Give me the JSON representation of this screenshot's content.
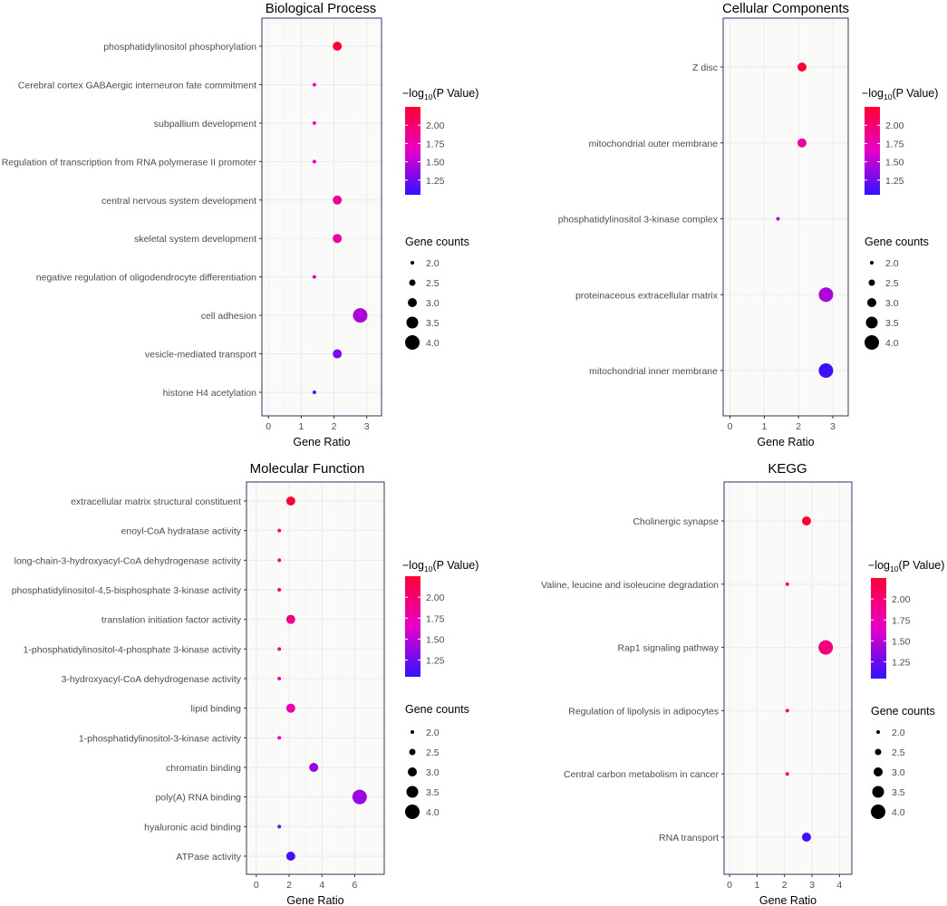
{
  "colors": {
    "high": "#ff0033",
    "mid": "#e600c8",
    "low": "#3311ff",
    "panel_bg": "#fafaf8",
    "grid": "#ebebeb",
    "frame": "#333366"
  },
  "legend": {
    "color_title_prefix": "−log",
    "color_title_sub": "10",
    "color_title_suffix": "(P Value)",
    "size_title": "Gene counts",
    "color_ticks": [
      "2.00",
      "1.75",
      "1.50",
      "1.25"
    ],
    "size_ticks": [
      "2.0",
      "2.5",
      "3.0",
      "3.5",
      "4.0"
    ]
  },
  "chart_data": [
    {
      "type": "scatter",
      "title": "Biological Process",
      "xlabel": "Gene Ratio",
      "ylabel": "",
      "xlim": [
        -0.2,
        3.45
      ],
      "xticks": [
        0,
        1,
        2,
        3
      ],
      "color_range": [
        1.05,
        2.25
      ],
      "categories": [
        "phosphatidylinositol phosphorylation",
        "Cerebral cortex GABAergic interneuron fate commitment",
        "subpallium development",
        "Regulation of transcription from RNA polymerase II promoter",
        "central nervous system development",
        "skeletal system development",
        "negative regulation of oligodendrocyte differentiation",
        "cell adhesion",
        "vesicle-mediated transport",
        "histone H4 acetylation"
      ],
      "x": [
        2.1,
        1.4,
        1.4,
        1.4,
        2.1,
        2.1,
        1.4,
        2.8,
        2.1,
        1.4
      ],
      "gene_counts": [
        3,
        2,
        2,
        2,
        3,
        3,
        2,
        4,
        3,
        2
      ],
      "neg_log10_p": [
        2.25,
        1.65,
        1.65,
        1.65,
        1.85,
        1.8,
        1.6,
        1.45,
        1.3,
        1.1
      ]
    },
    {
      "type": "scatter",
      "title": "Cellular Components",
      "xlabel": "Gene Ratio",
      "ylabel": "",
      "xlim": [
        -0.2,
        3.45
      ],
      "xticks": [
        0,
        1,
        2,
        3
      ],
      "color_range": [
        1.05,
        2.25
      ],
      "categories": [
        "Z disc",
        "mitochondrial outer membrane",
        "phosphatidylinositol 3-kinase complex",
        "proteinaceous extracellular matrix",
        "mitochondrial inner membrane"
      ],
      "x": [
        2.1,
        2.1,
        1.4,
        2.8,
        2.8
      ],
      "gene_counts": [
        3,
        3,
        2,
        4,
        4
      ],
      "neg_log10_p": [
        2.25,
        1.8,
        1.5,
        1.45,
        1.08
      ]
    },
    {
      "type": "scatter",
      "title": "Molecular Function",
      "xlabel": "Gene Ratio",
      "ylabel": "",
      "xlim": [
        -0.6,
        7.8
      ],
      "xticks": [
        0,
        2,
        4,
        6
      ],
      "color_range": [
        1.05,
        2.25
      ],
      "categories": [
        "extracellular matrix structural constituent",
        "enoyl-CoA hydratase activity",
        "long-chain-3-hydroxyacyl-CoA dehydrogenase activity",
        "phosphatidylinositol-4,5-bisphosphate 3-kinase activity",
        "translation initiation factor activity",
        "1-phosphatidylinositol-4-phosphate 3-kinase activity",
        "3-hydroxyacyl-CoA dehydrogenase activity",
        "lipid binding",
        "1-phosphatidylinositol-3-kinase activity",
        "chromatin binding",
        "poly(A) RNA binding",
        "hyaluronic acid binding",
        "ATPase activity"
      ],
      "x": [
        2.1,
        1.4,
        1.4,
        1.4,
        2.1,
        1.4,
        1.4,
        2.1,
        1.4,
        3.5,
        6.3,
        1.4,
        2.1
      ],
      "gene_counts": [
        3,
        2,
        2,
        2,
        3,
        2,
        2,
        3,
        2,
        3,
        4,
        2,
        3
      ],
      "neg_log10_p": [
        2.25,
        1.95,
        1.95,
        1.95,
        1.9,
        1.85,
        1.75,
        1.75,
        1.65,
        1.4,
        1.4,
        1.2,
        1.1
      ]
    },
    {
      "type": "scatter",
      "title": "KEGG",
      "xlabel": "Gene Ratio",
      "ylabel": "",
      "xlim": [
        -0.2,
        4.45
      ],
      "xticks": [
        0,
        1,
        2,
        3,
        4
      ],
      "color_range": [
        1.05,
        2.25
      ],
      "categories": [
        "Cholinergic synapse",
        "Valine, leucine and isoleucine degradation",
        "Rap1 signaling pathway",
        "Regulation of lipolysis in adipocytes",
        "Central carbon metabolism in cancer",
        "RNA transport"
      ],
      "x": [
        2.8,
        2.1,
        3.5,
        2.1,
        2.1,
        2.8
      ],
      "gene_counts": [
        3,
        2,
        4,
        2,
        2,
        3
      ],
      "neg_log10_p": [
        2.25,
        2.0,
        1.95,
        1.95,
        1.95,
        1.1
      ]
    }
  ]
}
